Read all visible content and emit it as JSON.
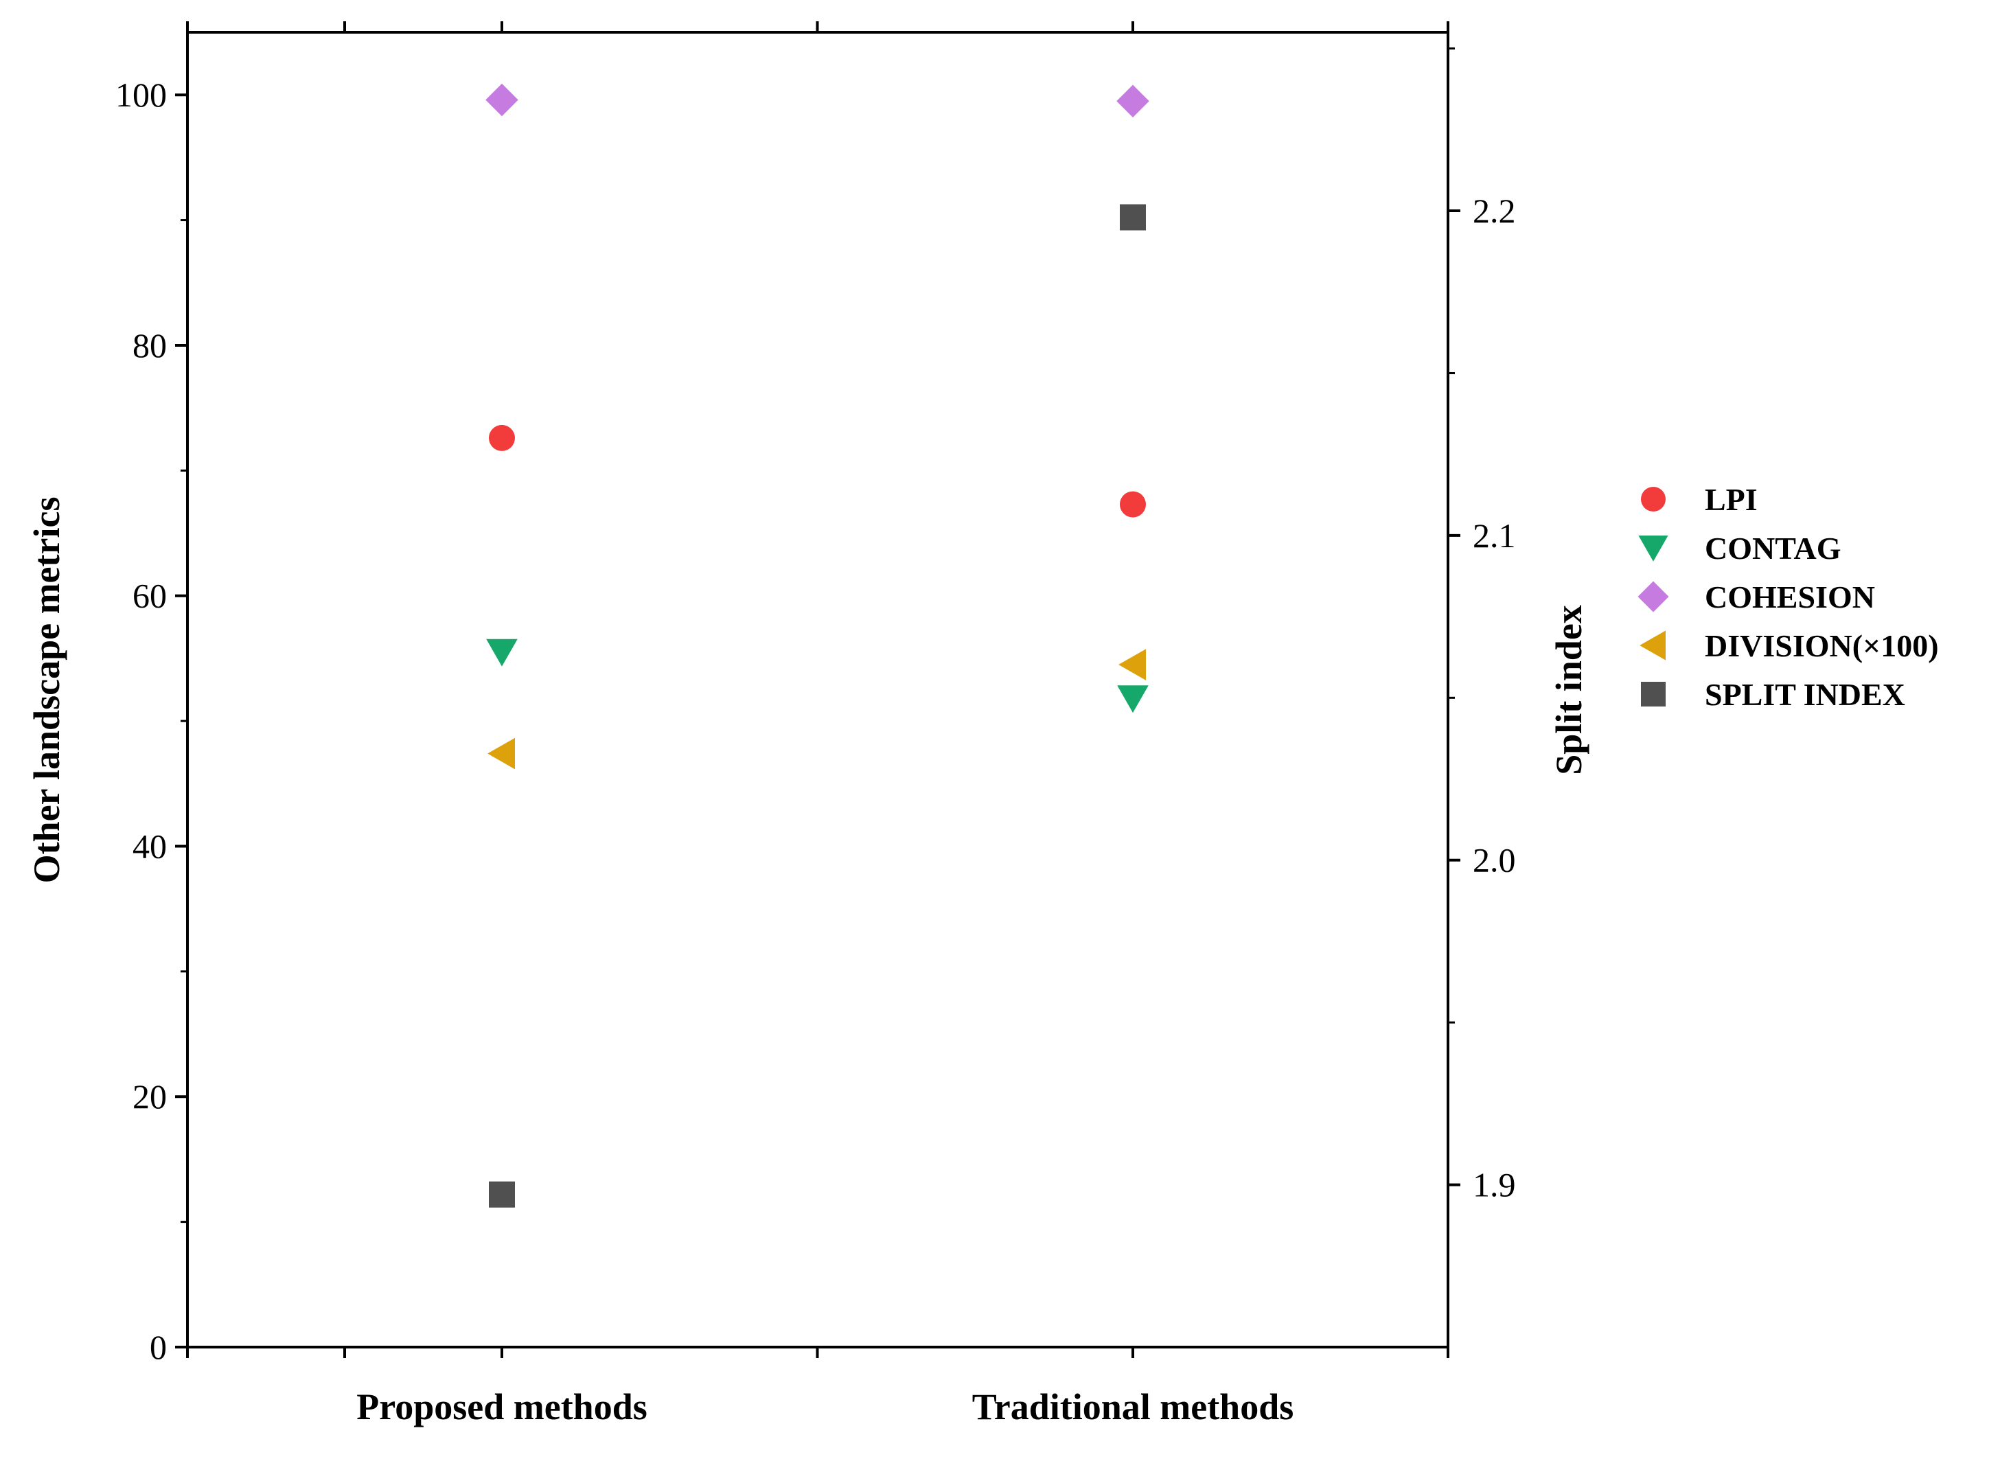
{
  "chart_data": {
    "type": "scatter",
    "categories": [
      "Proposed methods",
      "Traditional methods"
    ],
    "y_left": {
      "label": "Other landscape metrics",
      "range": [
        0,
        105
      ],
      "ticks": [
        0,
        20,
        40,
        60,
        80,
        100
      ],
      "tick_labels": [
        "0",
        "20",
        "40",
        "60",
        "80",
        "100"
      ]
    },
    "y_right": {
      "label": "Split index",
      "range": [
        1.85,
        2.255
      ],
      "ticks": [
        1.9,
        2.0,
        2.1,
        2.2
      ],
      "tick_labels": [
        "1.9",
        "2.0",
        "2.1",
        "2.2"
      ]
    },
    "series": [
      {
        "name": "LPI",
        "axis": "left",
        "marker": "circle",
        "color": "#f23b3b",
        "values": [
          72.6,
          67.3
        ]
      },
      {
        "name": "CONTAG",
        "axis": "left",
        "marker": "triangle-down",
        "color": "#16a86a",
        "values": [
          55.5,
          51.8
        ]
      },
      {
        "name": "COHESION",
        "axis": "left",
        "marker": "diamond",
        "color": "#c57be0",
        "values": [
          99.6,
          99.5
        ]
      },
      {
        "name": "DIVISION(×100)",
        "axis": "left",
        "marker": "triangle-left",
        "color": "#dda10b",
        "values": [
          47.4,
          54.5
        ]
      },
      {
        "name": "SPLIT INDEX",
        "axis": "right",
        "marker": "square",
        "color": "#505050",
        "values": [
          1.897,
          2.198
        ]
      }
    ],
    "legend_position": "right"
  }
}
